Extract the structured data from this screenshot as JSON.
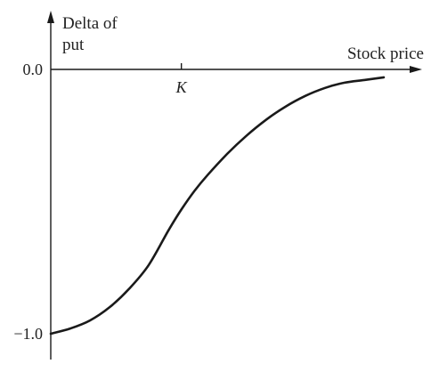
{
  "chart_data": {
    "type": "line",
    "title": "",
    "ylabel_lines": [
      "Delta of",
      "put"
    ],
    "xlabel": "Stock price",
    "y_ticks": [
      {
        "value": 0.0,
        "label": "0.0"
      },
      {
        "value": -1.0,
        "label": "−1.0"
      }
    ],
    "x_ticks": [
      {
        "value": 1.0,
        "label": "K"
      }
    ],
    "xlim": [
      0,
      2.7
    ],
    "ylim": [
      -1.0,
      0.0
    ],
    "grid": false,
    "legend": "none",
    "series": [
      {
        "x": [
          0.0,
          0.15,
          0.3,
          0.45,
          0.6,
          0.75,
          0.9,
          1.0,
          1.1,
          1.2,
          1.35,
          1.5,
          1.65,
          1.8,
          1.95,
          2.1,
          2.25,
          2.4,
          2.55
        ],
        "y": [
          -1.0,
          -0.98,
          -0.95,
          -0.9,
          -0.83,
          -0.74,
          -0.61,
          -0.53,
          -0.46,
          -0.4,
          -0.32,
          -0.25,
          -0.19,
          -0.14,
          -0.1,
          -0.07,
          -0.05,
          -0.04,
          -0.03
        ]
      }
    ],
    "colors": {
      "line": "#1a1a1a",
      "axis": "#1a1a1a",
      "text": "#222222"
    }
  }
}
